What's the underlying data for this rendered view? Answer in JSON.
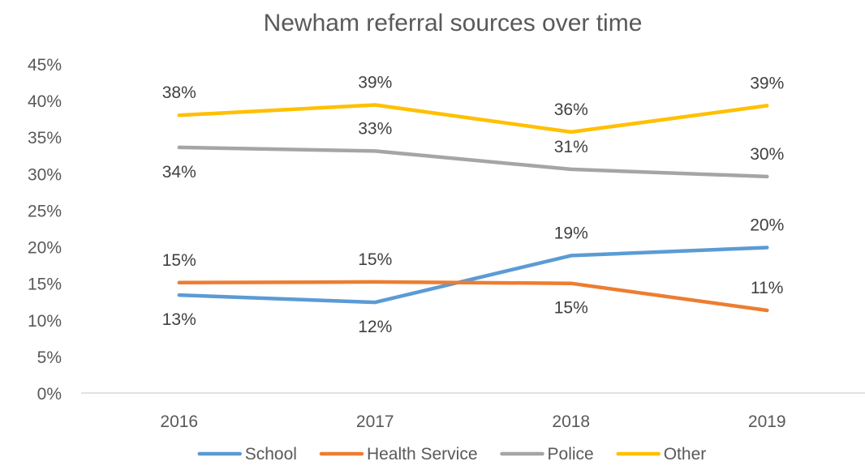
{
  "chart_data": {
    "type": "line",
    "title": "Newham referral sources over time",
    "xlabel": "",
    "ylabel": "",
    "categories": [
      "2016",
      "2017",
      "2018",
      "2019"
    ],
    "ylim": [
      0,
      45
    ],
    "yticks": [
      0,
      5,
      10,
      15,
      20,
      25,
      30,
      35,
      40,
      45
    ],
    "ytick_suffix": "%",
    "grid": false,
    "legend_position": "bottom",
    "series": [
      {
        "name": "School",
        "color": "#5B9BD5",
        "values": [
          13.4,
          12.4,
          18.8,
          19.9
        ],
        "labels": [
          "13%",
          "12%",
          "19%",
          "20%"
        ],
        "label_side": [
          "below",
          "below",
          "above",
          "above"
        ]
      },
      {
        "name": "Health Service",
        "color": "#ED7D31",
        "values": [
          15.1,
          15.2,
          15.0,
          11.3
        ],
        "labels": [
          "15%",
          "15%",
          "15%",
          "11%"
        ],
        "label_side": [
          "above",
          "above",
          "below",
          "above"
        ]
      },
      {
        "name": "Police",
        "color": "#A5A5A5",
        "values": [
          33.6,
          33.1,
          30.6,
          29.6
        ],
        "labels": [
          "34%",
          "33%",
          "31%",
          "30%"
        ],
        "label_side": [
          "below",
          "above",
          "above",
          "above"
        ]
      },
      {
        "name": "Other",
        "color": "#FFC000",
        "values": [
          38.0,
          39.4,
          35.7,
          39.3
        ],
        "labels": [
          "38%",
          "39%",
          "36%",
          "39%"
        ],
        "label_side": [
          "above",
          "above",
          "above",
          "above"
        ]
      }
    ]
  }
}
